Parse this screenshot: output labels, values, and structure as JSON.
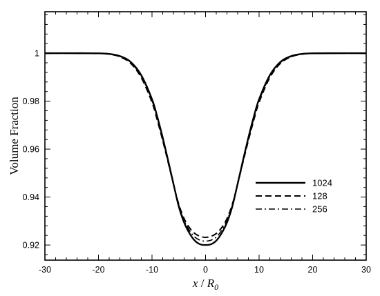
{
  "chart_data": {
    "type": "line",
    "xlabel_var": "x",
    "xlabel_sep": " / ",
    "xlabel_sym": "R",
    "xlabel_sub": "0",
    "ylabel": "Volume Fraction",
    "xlim": [
      -30,
      30
    ],
    "ylim": [
      0.9137,
      1.0173
    ],
    "x_ticks": [
      -30,
      -20,
      -10,
      0,
      10,
      20,
      30
    ],
    "y_ticks": [
      0.92,
      0.94,
      0.96,
      0.98,
      1
    ],
    "x_tick_labels": [
      "-30",
      "-20",
      "-10",
      "0",
      "10",
      "20",
      "30"
    ],
    "y_tick_labels": [
      "0.92",
      "0.94",
      "0.96",
      "0.98",
      "1"
    ],
    "grid": false,
    "legend_position": "center-right",
    "x": [
      -30,
      -24,
      -20,
      -18,
      -16,
      -14,
      -12,
      -10,
      -9,
      -8,
      -7,
      -6,
      -5,
      -4,
      -3,
      -2,
      -1,
      0,
      1,
      2,
      3,
      4,
      5,
      6,
      7,
      8,
      9,
      10,
      12,
      14,
      16,
      18,
      20,
      24,
      30
    ],
    "series": [
      {
        "name": "1024",
        "dash": "solid",
        "values": [
          1.0,
          1.0,
          0.99995,
          0.9997,
          0.9988,
          0.9964,
          0.9908,
          0.9808,
          0.9734,
          0.9648,
          0.9554,
          0.9456,
          0.9361,
          0.9294,
          0.9249,
          0.9218,
          0.9203,
          0.92,
          0.9203,
          0.9218,
          0.9249,
          0.9294,
          0.9361,
          0.9456,
          0.9554,
          0.9648,
          0.9734,
          0.9808,
          0.9908,
          0.9964,
          0.9988,
          0.9997,
          0.99995,
          1.0,
          1.0
        ]
      },
      {
        "name": "128",
        "dash": "dashed",
        "values": [
          1.0,
          1.0,
          0.99993,
          0.9996,
          0.9985,
          0.9958,
          0.9898,
          0.9795,
          0.972,
          0.9636,
          0.9546,
          0.9454,
          0.937,
          0.931,
          0.9272,
          0.9248,
          0.9236,
          0.9232,
          0.9236,
          0.9248,
          0.9272,
          0.931,
          0.937,
          0.9454,
          0.9546,
          0.9636,
          0.972,
          0.9795,
          0.9898,
          0.9958,
          0.9985,
          0.9996,
          0.99993,
          1.0,
          1.0
        ]
      },
      {
        "name": "256",
        "dash": "dashdot",
        "values": [
          1.0,
          1.0,
          0.99994,
          0.99965,
          0.9986,
          0.9961,
          0.9903,
          0.9802,
          0.9727,
          0.9642,
          0.955,
          0.9455,
          0.9366,
          0.9302,
          0.9261,
          0.9233,
          0.922,
          0.9216,
          0.922,
          0.9233,
          0.9261,
          0.9302,
          0.9366,
          0.9455,
          0.955,
          0.9642,
          0.9727,
          0.9802,
          0.9903,
          0.9961,
          0.9986,
          0.99965,
          0.99994,
          1.0,
          1.0
        ]
      }
    ]
  }
}
